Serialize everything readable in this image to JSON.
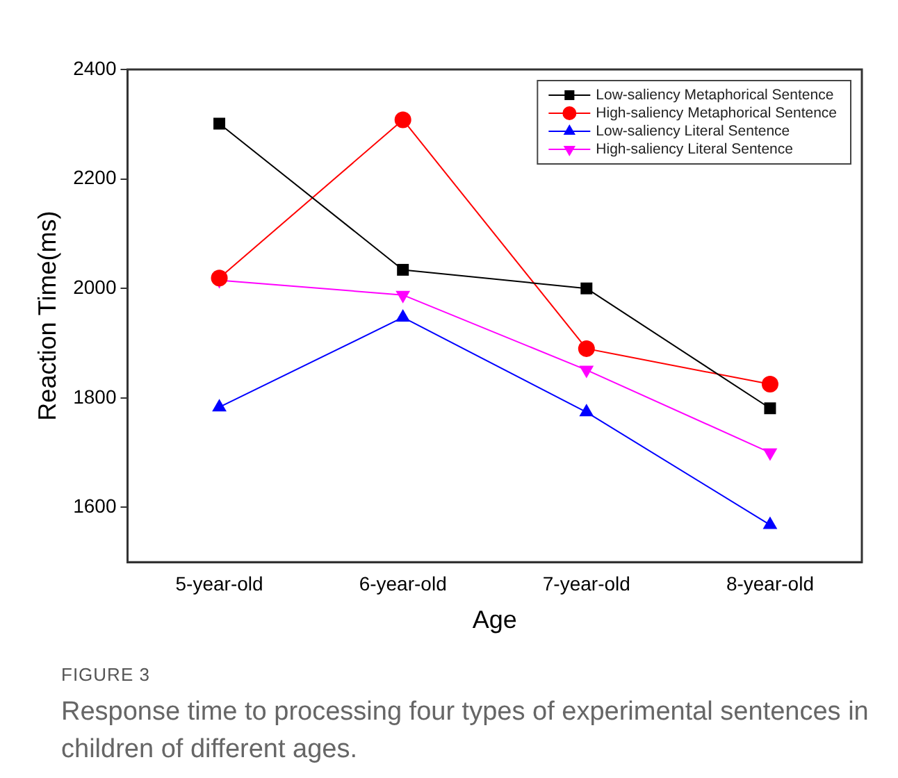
{
  "chart_data": {
    "type": "line",
    "xlabel": "Age",
    "ylabel": "Reaction Time(ms)",
    "categories": [
      "5-year-old",
      "6-year-old",
      "7-year-old",
      "8-year-old"
    ],
    "series": [
      {
        "name": "Low-saliency Metaphorical Sentence",
        "color": "#000000",
        "marker": "square",
        "values": [
          2301,
          2034,
          2000,
          1781
        ]
      },
      {
        "name": "High-saliency Metaphorical Sentence",
        "color": "#ff0000",
        "marker": "circle",
        "values": [
          2019,
          2308,
          1890,
          1825
        ]
      },
      {
        "name": "Low-saliency Literal Sentence",
        "color": "#0000ff",
        "marker": "triangle",
        "values": [
          1783,
          1947,
          1774,
          1568
        ]
      },
      {
        "name": "High-saliency Literal Sentence",
        "color": "#ff00ff",
        "marker": "triangle-down",
        "values": [
          2015,
          1988,
          1851,
          1700
        ]
      }
    ],
    "ylim": [
      1500,
      2400
    ],
    "yticks": [
      1600,
      1800,
      2000,
      2200,
      2400
    ],
    "grid": false,
    "legend": "top right",
    "line_style": "solid",
    "annotations": [
      "FIGURE 3",
      "Response time to processing four types of experimental sentences in children of different ages."
    ]
  }
}
